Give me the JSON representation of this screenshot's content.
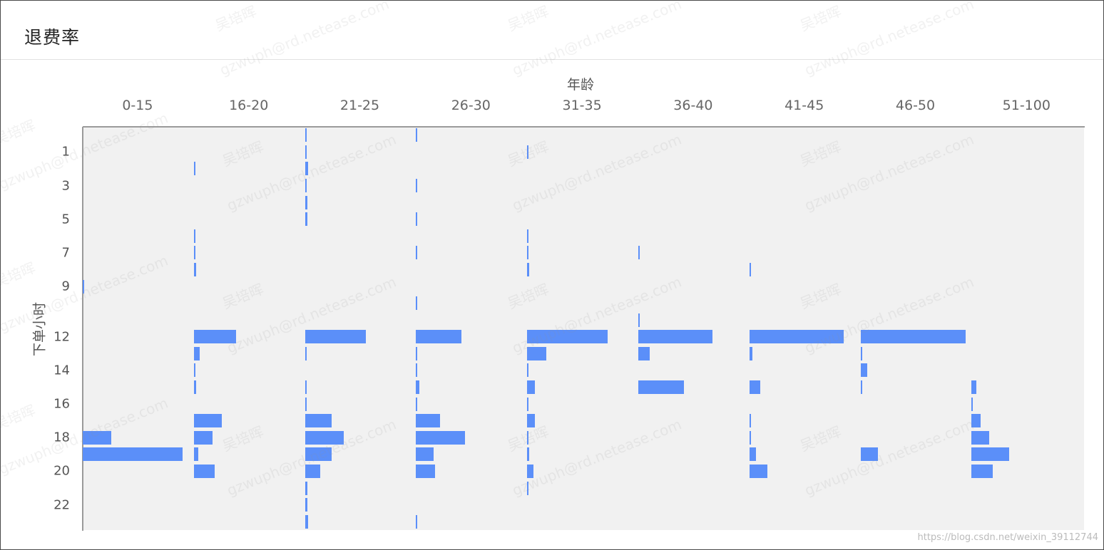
{
  "header": {
    "title": "退费率"
  },
  "watermark": {
    "name": "吴培晖",
    "email": "gzwuph@rd.netease.com"
  },
  "footer": {
    "mark": "https://blog.csdn.net/weixin_39112744"
  },
  "chart_data": {
    "type": "bar",
    "orientation": "horizontal-faceted",
    "title": "退费率",
    "xlabel": "年龄",
    "ylabel": "下单小时",
    "columns": [
      "0-15",
      "16-20",
      "21-25",
      "26-30",
      "31-35",
      "36-40",
      "41-45",
      "46-50",
      "51-100"
    ],
    "hours": [
      0,
      1,
      2,
      3,
      4,
      5,
      6,
      7,
      8,
      9,
      10,
      11,
      12,
      13,
      14,
      15,
      16,
      17,
      18,
      19,
      20,
      21,
      22,
      23
    ],
    "hour_tick_labels": [
      "1",
      "3",
      "5",
      "7",
      "9",
      "12",
      "14",
      "16",
      "18",
      "20",
      "22"
    ],
    "color": "#5b8ff9",
    "grid": false,
    "value_max": 1,
    "series": [
      {
        "values": [
          0,
          0,
          0,
          0,
          0,
          0,
          0,
          0,
          0,
          0.01,
          0,
          0,
          0,
          0,
          0,
          0,
          0,
          0,
          0.26,
          0.9,
          0,
          0,
          0,
          0
        ]
      },
      {
        "values": [
          0,
          0,
          0.01,
          0,
          0,
          0,
          0.01,
          0.01,
          0.02,
          0,
          0,
          0,
          0.38,
          0.05,
          0.01,
          0.02,
          0,
          0.25,
          0.17,
          0.04,
          0.19,
          0,
          0,
          0
        ]
      },
      {
        "values": [
          0.01,
          0.01,
          0.03,
          0.01,
          0.02,
          0.02,
          0,
          0,
          0,
          0,
          0,
          0,
          0.55,
          0.01,
          0,
          0.01,
          0.01,
          0.24,
          0.35,
          0.24,
          0.14,
          0.02,
          0.02,
          0.03
        ]
      },
      {
        "values": [
          0.01,
          0,
          0,
          0.01,
          0,
          0.01,
          0,
          0.01,
          0,
          0,
          0.01,
          0,
          0.41,
          0.01,
          0.01,
          0.03,
          0.01,
          0.22,
          0.44,
          0.16,
          0.17,
          0,
          0,
          0.01
        ]
      },
      {
        "values": [
          0,
          0.01,
          0,
          0,
          0,
          0,
          0.01,
          0.01,
          0.02,
          0,
          0,
          0,
          0.73,
          0.17,
          0.01,
          0.07,
          0.01,
          0.07,
          0.01,
          0.02,
          0.06,
          0.01,
          0,
          0
        ]
      },
      {
        "values": [
          0,
          0,
          0,
          0,
          0,
          0,
          0,
          0.01,
          0,
          0,
          0,
          0.01,
          0.67,
          0.1,
          0,
          0.41,
          0,
          0,
          0,
          0,
          0,
          0,
          0,
          0
        ]
      },
      {
        "values": [
          0,
          0,
          0,
          0,
          0,
          0,
          0,
          0,
          0.01,
          0,
          0,
          0,
          0.85,
          0.03,
          0,
          0.1,
          0,
          0.01,
          0.01,
          0.06,
          0.16,
          0,
          0,
          0
        ]
      },
      {
        "values": [
          0,
          0,
          0,
          0,
          0,
          0,
          0,
          0,
          0,
          0,
          0,
          0,
          0.95,
          0.01,
          0.06,
          0.01,
          0,
          0,
          0,
          0.16,
          0,
          0,
          0,
          0
        ]
      },
      {
        "values": [
          0,
          0,
          0,
          0,
          0,
          0,
          0,
          0,
          0,
          0,
          0,
          0,
          0,
          0,
          0,
          0.04,
          0.01,
          0.08,
          0.16,
          0.34,
          0.19,
          0,
          0,
          0
        ]
      }
    ]
  }
}
